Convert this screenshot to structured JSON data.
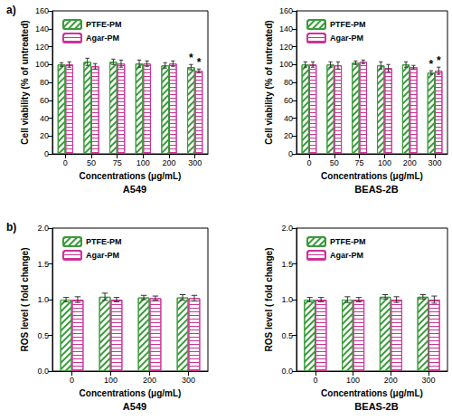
{
  "chart_data": [
    {
      "type": "bar",
      "title": "A549",
      "annotations": [
        {
          "text": "a)"
        }
      ],
      "x_label": "Concentrations (μg/mL)",
      "y_label": "Cell viability (% of untreated)",
      "categories": [
        "0",
        "50",
        "75",
        "100",
        "200",
        "300"
      ],
      "series": [
        {
          "name": "PTFE-PM",
          "color": "#3a9a3a",
          "values": [
            100,
            103,
            103,
            101,
            99,
            97
          ],
          "errors": [
            2,
            4,
            3,
            4,
            3,
            3
          ],
          "annotations": [
            {
              "category": "300",
              "text": "*"
            }
          ]
        },
        {
          "name": "Agar-PM",
          "color": "#cc3399",
          "values": [
            100,
            98,
            101,
            101,
            101,
            93
          ],
          "errors": [
            3,
            3,
            4,
            3,
            3,
            2
          ],
          "annotations": [
            {
              "category": "300",
              "text": "*"
            }
          ]
        }
      ],
      "ylim": [
        0,
        160
      ],
      "yticks": [
        0,
        20,
        40,
        60,
        80,
        100,
        120,
        140,
        160
      ],
      "grid": false,
      "legend": "upper left"
    },
    {
      "type": "bar",
      "title": "BEAS-2B",
      "x_label": "Concentrations (μg/mL)",
      "y_label": "Cell viability (% of untreated)",
      "categories": [
        "0",
        "50",
        "75",
        "100",
        "200",
        "300"
      ],
      "series": [
        {
          "name": "PTFE-PM",
          "color": "#3a9a3a",
          "values": [
            100,
            100,
            102,
            99,
            100,
            91
          ],
          "errors": [
            3,
            3,
            2,
            4,
            3,
            2
          ],
          "annotations": [
            {
              "category": "300",
              "text": "*"
            }
          ]
        },
        {
          "name": "Agar-PM",
          "color": "#cc3399",
          "values": [
            100,
            99,
            103,
            96,
            97,
            93
          ],
          "errors": [
            3,
            4,
            2,
            4,
            2,
            4
          ],
          "annotations": [
            {
              "category": "300",
              "text": "*"
            }
          ]
        }
      ],
      "ylim": [
        0,
        160
      ],
      "yticks": [
        0,
        20,
        40,
        60,
        80,
        100,
        120,
        140,
        160
      ],
      "grid": false,
      "legend": "upper left"
    },
    {
      "type": "bar",
      "title": "A549",
      "annotations": [
        {
          "text": "b)"
        }
      ],
      "x_label": "Concentrations (μg/mL)",
      "y_label": "ROS level ( fold change)",
      "categories": [
        "0",
        "100",
        "200",
        "300"
      ],
      "series": [
        {
          "name": "PTFE-PM",
          "color": "#3a9a3a",
          "values": [
            1.0,
            1.04,
            1.03,
            1.03
          ],
          "errors": [
            0.03,
            0.05,
            0.03,
            0.04
          ]
        },
        {
          "name": "Agar-PM",
          "color": "#cc3399",
          "values": [
            1.0,
            1.0,
            1.02,
            1.02
          ],
          "errors": [
            0.04,
            0.03,
            0.03,
            0.04
          ]
        }
      ],
      "ylim": [
        0,
        2
      ],
      "yticks": [
        {
          "value": 0,
          "label": "0.0"
        },
        0.5,
        {
          "value": 1,
          "label": "1.0"
        },
        1.5,
        {
          "value": 2,
          "label": "2.0"
        }
      ],
      "grid": false,
      "legend": "upper left"
    },
    {
      "type": "bar",
      "title": "BEAS-2B",
      "x_label": "Concentrations (μg/mL)",
      "y_label": "ROS level ( fold change)",
      "categories": [
        "0",
        "100",
        "200",
        "300"
      ],
      "series": [
        {
          "name": "PTFE-PM",
          "color": "#3a9a3a",
          "values": [
            1.0,
            1.0,
            1.04,
            1.04
          ],
          "errors": [
            0.03,
            0.04,
            0.03,
            0.03
          ]
        },
        {
          "name": "Agar-PM",
          "color": "#cc3399",
          "values": [
            1.0,
            1.0,
            1.0,
            1.0
          ],
          "errors": [
            0.03,
            0.03,
            0.04,
            0.05
          ]
        }
      ],
      "ylim": [
        0,
        2
      ],
      "yticks": [
        {
          "value": 0,
          "label": "0.0"
        },
        0.5,
        {
          "value": 1,
          "label": "1.0"
        },
        1.5,
        {
          "value": 2,
          "label": "2.0"
        }
      ],
      "grid": false,
      "legend": "upper left"
    }
  ]
}
